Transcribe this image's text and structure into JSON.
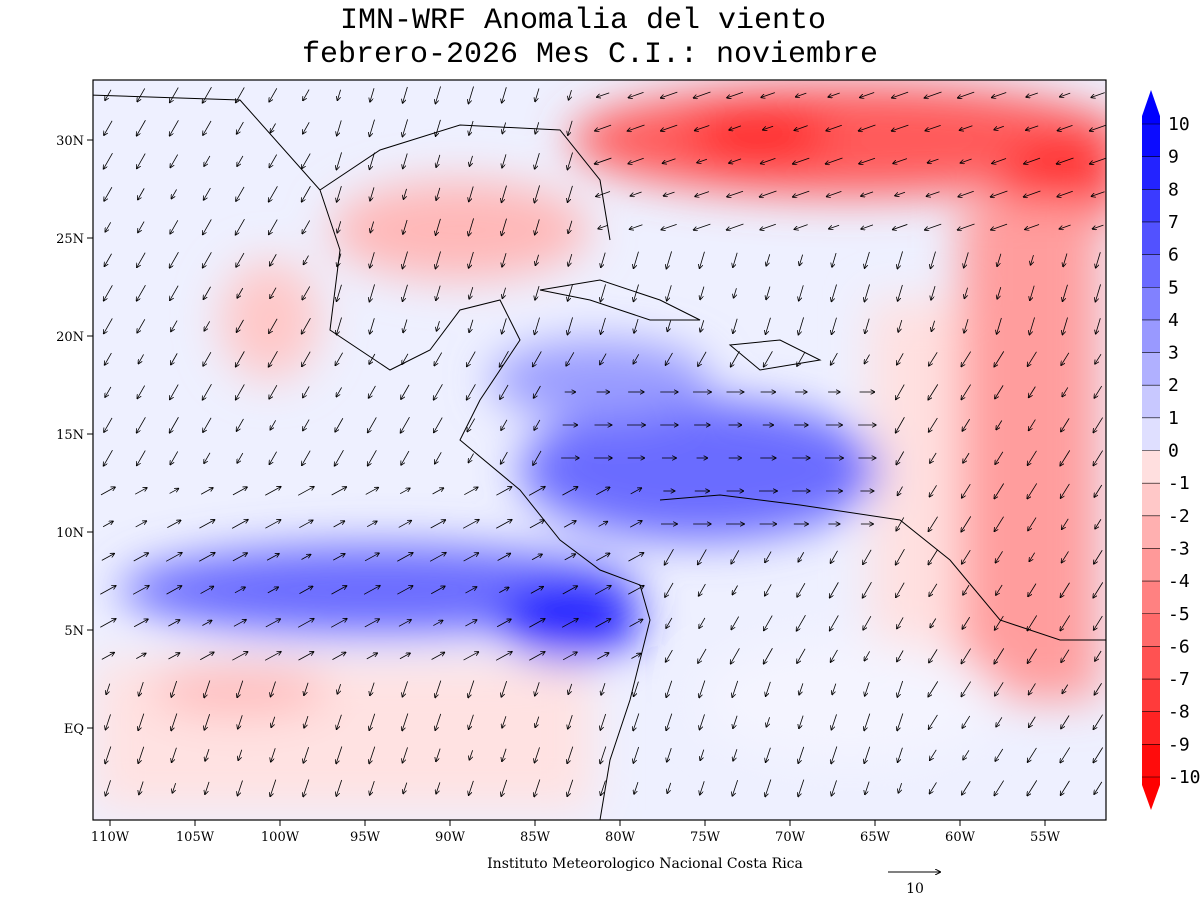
{
  "map": {
    "title": "IMN-WRF Anomalia del viento",
    "subtitle": "febrero-2026 Mes C.I.: noviembre",
    "footer": "Instituto Meteorologico Nacional Costa Rica",
    "reference_vector": 10,
    "lon_ticks": [
      {
        "value": -110,
        "label": "110W"
      },
      {
        "value": -105,
        "label": "105W"
      },
      {
        "value": -100,
        "label": "100W"
      },
      {
        "value": -95,
        "label": "95W"
      },
      {
        "value": -90,
        "label": "90W"
      },
      {
        "value": -85,
        "label": "85W"
      },
      {
        "value": -80,
        "label": "80W"
      },
      {
        "value": -75,
        "label": "75W"
      },
      {
        "value": -70,
        "label": "70W"
      },
      {
        "value": -65,
        "label": "65W"
      },
      {
        "value": -60,
        "label": "60W"
      },
      {
        "value": -55,
        "label": "55W"
      }
    ],
    "lat_ticks": [
      {
        "value": 30,
        "label": "30N"
      },
      {
        "value": 25,
        "label": "25N"
      },
      {
        "value": 20,
        "label": "20N"
      },
      {
        "value": 15,
        "label": "15N"
      },
      {
        "value": 10,
        "label": "10N"
      },
      {
        "value": 5,
        "label": "5N"
      },
      {
        "value": 0,
        "label": "EQ"
      }
    ],
    "colorbar": [
      10,
      9,
      8,
      7,
      6,
      5,
      4,
      3,
      2,
      1,
      0,
      -1,
      -2,
      -3,
      -4,
      -5,
      -6,
      -7,
      -8,
      -9,
      -10
    ]
  }
}
